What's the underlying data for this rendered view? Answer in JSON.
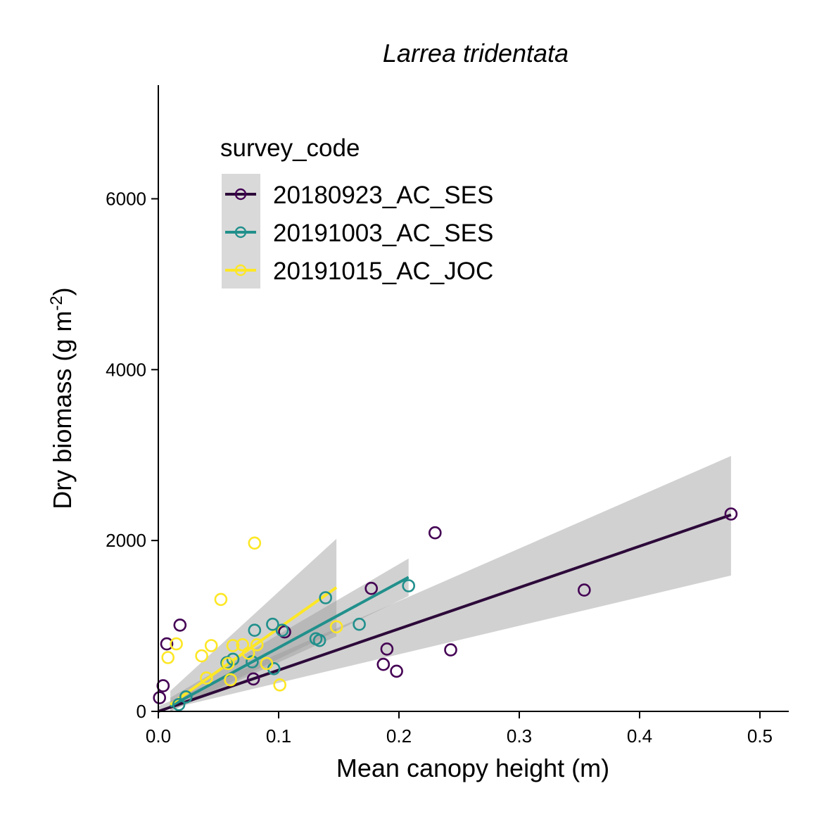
{
  "chart_data": {
    "type": "scatter",
    "title": "Larrea tridentata",
    "xlabel": "Mean canopy height (m)",
    "ylabel_main": "Dry biomass (g m",
    "ylabel_sup": "-2",
    "ylabel_end": ")",
    "xlim": [
      0,
      0.524
    ],
    "ylim": [
      0,
      7330
    ],
    "x_ticks": [
      0.0,
      0.1,
      0.2,
      0.3,
      0.4,
      0.5
    ],
    "x_tick_labels": [
      "0.0",
      "0.1",
      "0.2",
      "0.3",
      "0.4",
      "0.5"
    ],
    "y_ticks": [
      0,
      2000,
      4000,
      6000
    ],
    "y_tick_labels": [
      "0",
      "2000",
      "4000",
      "6000"
    ],
    "grid": false,
    "legend": {
      "title": "survey_code",
      "placement": "top-left",
      "background": "#d9d9d9"
    },
    "series": [
      {
        "name": "20180923_AC_SES",
        "color": "#440154",
        "line_color": "#2d0a3a",
        "points": [
          [
            0.001,
            160
          ],
          [
            0.004,
            300
          ],
          [
            0.007,
            790
          ],
          [
            0.018,
            1010
          ],
          [
            0.079,
            380
          ],
          [
            0.105,
            930
          ],
          [
            0.177,
            1440
          ],
          [
            0.187,
            550
          ],
          [
            0.19,
            730
          ],
          [
            0.198,
            470
          ],
          [
            0.23,
            2090
          ],
          [
            0.243,
            720
          ],
          [
            0.354,
            1420
          ],
          [
            0.476,
            2310
          ]
        ],
        "fit": {
          "x": [
            0.0,
            0.476
          ],
          "y": [
            0,
            2300
          ]
        },
        "ci": {
          "x": [
            0.0,
            0.476
          ],
          "lower": [
            -60,
            1590
          ],
          "upper": [
            60,
            2990
          ]
        }
      },
      {
        "name": "20191003_AC_SES",
        "color": "#21908c",
        "line_color": "#21908c",
        "points": [
          [
            0.017,
            80
          ],
          [
            0.023,
            170
          ],
          [
            0.057,
            570
          ],
          [
            0.062,
            610
          ],
          [
            0.078,
            580
          ],
          [
            0.08,
            950
          ],
          [
            0.095,
            1020
          ],
          [
            0.096,
            500
          ],
          [
            0.103,
            950
          ],
          [
            0.131,
            850
          ],
          [
            0.134,
            830
          ],
          [
            0.139,
            1330
          ],
          [
            0.167,
            1020
          ],
          [
            0.208,
            1470
          ]
        ],
        "fit": {
          "x": [
            0.01,
            0.208
          ],
          "y": [
            60,
            1570
          ]
        },
        "ci": {
          "x": [
            0.01,
            0.208
          ],
          "lower": [
            -40,
            1350
          ],
          "upper": [
            160,
            1790
          ]
        }
      },
      {
        "name": "20191015_AC_JOC",
        "color": "#fde725",
        "line_color": "#fde725",
        "points": [
          [
            0.008,
            630
          ],
          [
            0.015,
            790
          ],
          [
            0.036,
            650
          ],
          [
            0.04,
            390
          ],
          [
            0.044,
            770
          ],
          [
            0.052,
            1310
          ],
          [
            0.058,
            560
          ],
          [
            0.06,
            370
          ],
          [
            0.062,
            770
          ],
          [
            0.07,
            780
          ],
          [
            0.075,
            680
          ],
          [
            0.08,
            1970
          ],
          [
            0.082,
            780
          ],
          [
            0.09,
            560
          ],
          [
            0.101,
            310
          ],
          [
            0.148,
            990
          ]
        ],
        "fit": {
          "x": [
            0.01,
            0.148
          ],
          "y": [
            80,
            1450
          ]
        },
        "ci": {
          "x": [
            0.01,
            0.148
          ],
          "lower": [
            -80,
            880
          ],
          "upper": [
            240,
            2020
          ]
        }
      }
    ]
  }
}
